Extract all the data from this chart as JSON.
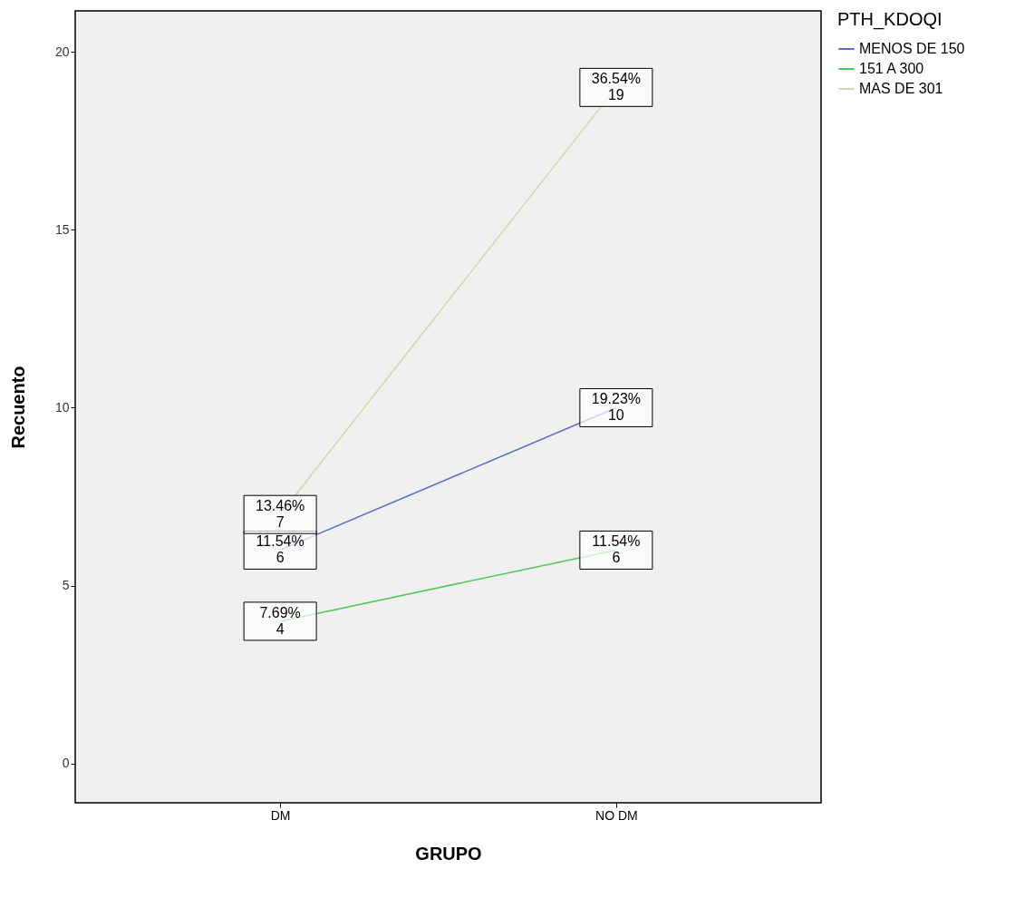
{
  "chart_data": {
    "type": "line",
    "xlabel": "GRUPO",
    "ylabel": "Recuento",
    "legend_title": "PTH_KDOQI",
    "categories": [
      "DM",
      "NO DM"
    ],
    "series": [
      {
        "name": "MENOS DE 150",
        "color": "#5b6fc0",
        "values": [
          6,
          10
        ],
        "value_labels": [
          "11.54%\n6",
          "19.23%\n10"
        ]
      },
      {
        "name": "151 A 300",
        "color": "#4fc85a",
        "values": [
          4,
          6
        ],
        "value_labels": [
          "7.69%\n4",
          "11.54%\n6"
        ]
      },
      {
        "name": "MAS DE 301",
        "color": "#d8d3a8",
        "values": [
          7,
          19
        ],
        "value_labels": [
          "13.46%\n7",
          "36.54%\n19"
        ]
      }
    ],
    "ylim": [
      -1.1,
      21.15
    ],
    "yticks": [
      0,
      5,
      10,
      15,
      20
    ],
    "grid": false,
    "legend": "top right",
    "line_style": "solid"
  }
}
